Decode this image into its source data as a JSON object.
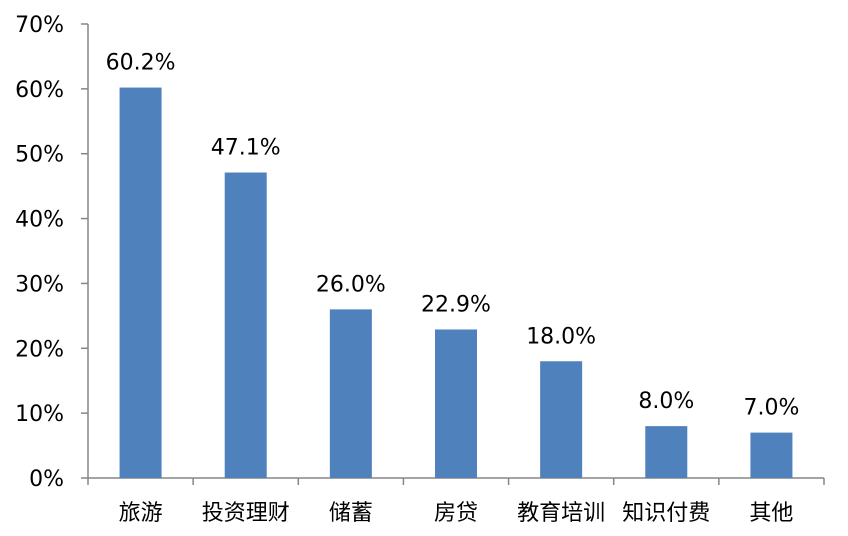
{
  "chart_data": {
    "type": "bar",
    "categories": [
      "旅游",
      "投资理财",
      "储蓄",
      "房贷",
      "教育培训",
      "知识付费",
      "其他"
    ],
    "values": [
      60.2,
      47.1,
      26.0,
      22.9,
      18.0,
      8.0,
      7.0
    ],
    "data_labels": [
      "60.2%",
      "47.1%",
      "26.0%",
      "22.9%",
      "18.0%",
      "8.0%",
      "7.0%"
    ],
    "y_ticks": [
      0,
      10,
      20,
      30,
      40,
      50,
      60,
      70
    ],
    "y_tick_labels": [
      "0%",
      "10%",
      "20%",
      "30%",
      "40%",
      "50%",
      "60%",
      "70%"
    ],
    "ylim": [
      0,
      70
    ],
    "grid": false,
    "title": "",
    "xlabel": "",
    "ylabel": "",
    "bar_color": "#4F81BD",
    "axis_color": "#868686"
  }
}
